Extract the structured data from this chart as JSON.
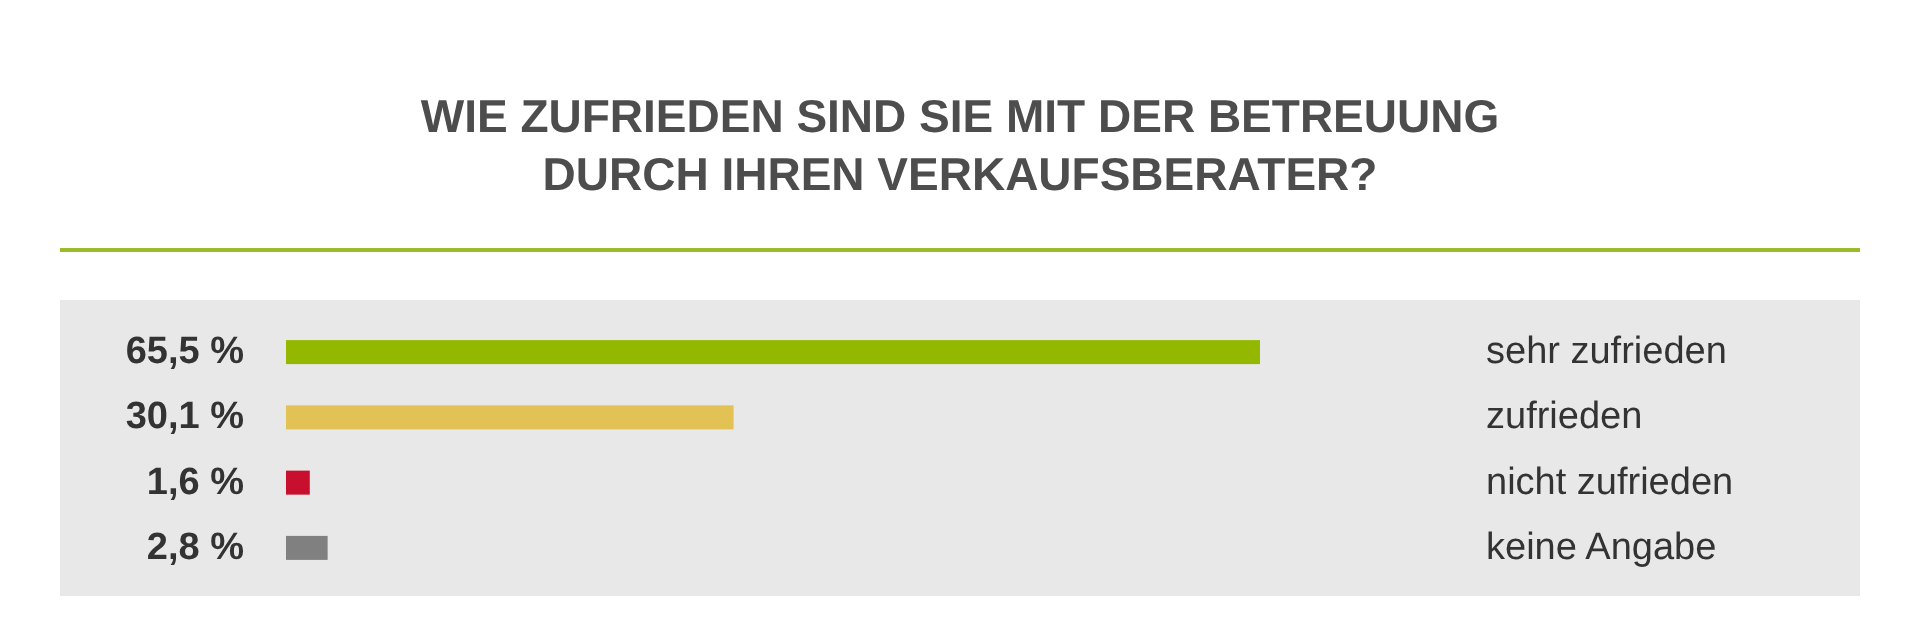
{
  "chart_data": {
    "type": "bar",
    "orientation": "horizontal",
    "title": "WIE ZUFRIEDEN SIND SIE MIT DER BETREUUNG\nDURCH IHREN VERKAUFSBERATER?",
    "categories": [
      "sehr zufrieden",
      "zufrieden",
      "nicht zufrieden",
      "keine Angabe"
    ],
    "values": [
      65.5,
      30.1,
      1.6,
      2.8
    ],
    "colors": [
      "#94b800",
      "#e3c255",
      "#c8102e",
      "#808080"
    ],
    "value_labels": [
      "65,5 %",
      "30,1 %",
      "1,6 %",
      "2,8 %"
    ]
  }
}
